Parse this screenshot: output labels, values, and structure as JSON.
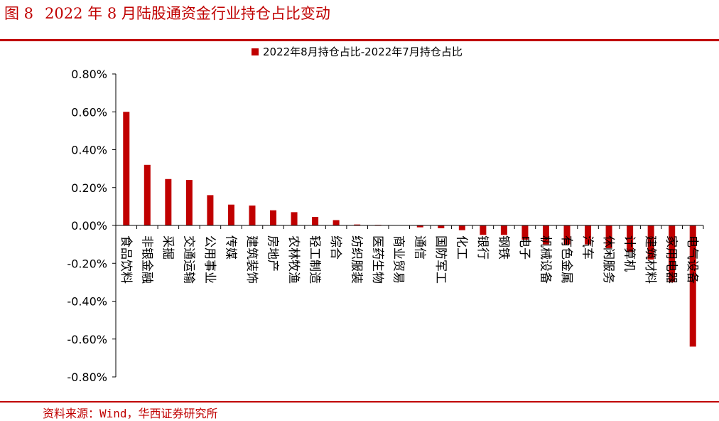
{
  "figure": {
    "number": "图 8",
    "title": "2022 年 8 月陆股通资金行业持仓占比变动",
    "source": "资料来源：Wind，华西证券研究所"
  },
  "colors": {
    "accent": "#c00000",
    "bar": "#c00000",
    "axis": "#000000"
  },
  "chart_data": {
    "type": "bar",
    "legend": {
      "position": "top",
      "entries": [
        "2022年8月持仓占比-2022年7月持仓占比"
      ]
    },
    "grid": false,
    "ylim": [
      -0.8,
      0.8
    ],
    "y_ticks": [
      "0.80%",
      "0.60%",
      "0.40%",
      "0.20%",
      "0.00%",
      "-0.20%",
      "-0.40%",
      "-0.60%",
      "-0.80%"
    ],
    "y_tick_values": [
      0.8,
      0.6,
      0.4,
      0.2,
      0.0,
      -0.2,
      -0.4,
      -0.6,
      -0.8
    ],
    "categories": [
      "食品饮料",
      "非银金融",
      "采掘",
      "交通运输",
      "公用事业",
      "传媒",
      "建筑装饰",
      "房地产",
      "农林牧渔",
      "轻工制造",
      "综合",
      "纺织服装",
      "医药生物",
      "商业贸易",
      "通信",
      "国防军工",
      "化工",
      "银行",
      "钢铁",
      "电子",
      "机械设备",
      "有色金属",
      "汽车",
      "休闲服务",
      "计算机",
      "建筑材料",
      "家用电器",
      "电气设备"
    ],
    "series": [
      {
        "name": "2022年8月持仓占比-2022年7月持仓占比",
        "values": [
          0.6,
          0.32,
          0.245,
          0.24,
          0.16,
          0.11,
          0.105,
          0.08,
          0.07,
          0.045,
          0.028,
          0.005,
          0.003,
          0.0,
          -0.01,
          -0.015,
          -0.025,
          -0.05,
          -0.05,
          -0.075,
          -0.1,
          -0.1,
          -0.1,
          -0.12,
          -0.14,
          -0.18,
          -0.3,
          -0.64
        ]
      }
    ],
    "unit": "%"
  }
}
